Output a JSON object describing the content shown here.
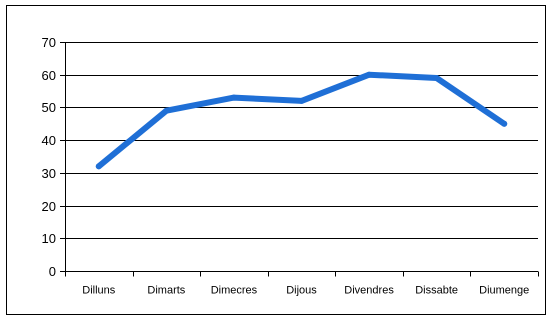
{
  "chart_data": {
    "type": "line",
    "title": "",
    "xlabel": "",
    "ylabel": "",
    "categories": [
      "Dilluns",
      "Dimarts",
      "Dimecres",
      "Dijous",
      "Divendres",
      "Dissabte",
      "Diumenge"
    ],
    "series": [
      {
        "values": [
          32,
          49,
          53,
          52,
          60,
          59,
          45
        ],
        "color": "#1f6fd6"
      }
    ],
    "ylim": [
      0,
      70
    ],
    "yticks": [
      0,
      10,
      20,
      30,
      40,
      50,
      60,
      70
    ],
    "grid": true,
    "legend": "none"
  }
}
